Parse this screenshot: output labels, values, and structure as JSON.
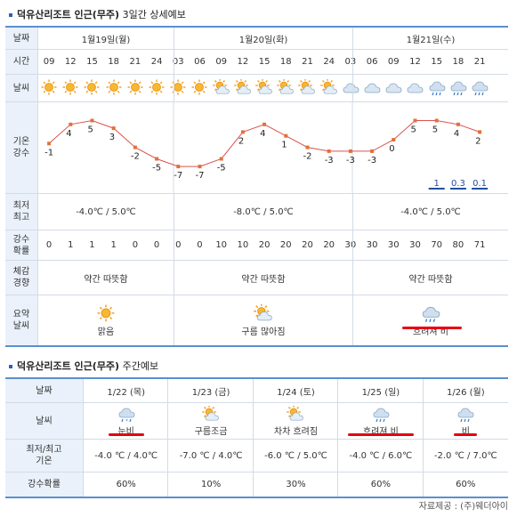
{
  "section1": {
    "title_bold": "덕유산리조트 인근(무주)",
    "title_rest": "3일간 상세예보"
  },
  "row_labels": {
    "date": "날짜",
    "time": "시간",
    "weather": "날씨",
    "temp1": "기온",
    "temp2": "강수",
    "minmax1": "최저",
    "minmax2": "최고",
    "prob1": "강수",
    "prob2": "확률",
    "feel1": "체감",
    "feel2": "경향",
    "summary1": "요약",
    "summary2": "날씨"
  },
  "days": [
    {
      "label": "1월19일(월)",
      "minmax": "-4.0℃ / 5.0℃",
      "feel": "약간 따뜻함",
      "summary": "맑음",
      "summary_icon": "sun-icon"
    },
    {
      "label": "1월20일(화)",
      "minmax": "-8.0℃ / 5.0℃",
      "feel": "약간 따뜻함",
      "summary": "구름 많아짐",
      "summary_icon": "sun-cloud-icon"
    },
    {
      "label": "1월21일(수)",
      "minmax": "-4.0℃ / 5.0℃",
      "feel": "약간 따뜻함",
      "summary": "흐려져 비",
      "summary_icon": "rain-cloud-icon"
    }
  ],
  "times": [
    "09",
    "12",
    "15",
    "18",
    "21",
    "24",
    "03",
    "06",
    "09",
    "12",
    "15",
    "18",
    "21",
    "24",
    "03",
    "06",
    "09",
    "12",
    "15",
    "18",
    "21"
  ],
  "icons": [
    "sun",
    "sun",
    "sun",
    "sun",
    "sun",
    "sun",
    "sun",
    "sun",
    "sun-cloud",
    "sun-cloud",
    "sun-cloud",
    "sun-cloud",
    "sun-cloud",
    "sun-cloud",
    "cloud",
    "cloud",
    "cloud",
    "cloud",
    "rain-cloud",
    "rain-cloud",
    "rain-cloud"
  ],
  "temps": [
    -1,
    4,
    5,
    3,
    -2,
    -5,
    -7,
    -7,
    -5,
    2,
    4,
    1,
    -2,
    -3,
    -3,
    -3,
    0,
    5,
    5,
    4,
    2
  ],
  "temp_labels": [
    "-1",
    "4",
    "5",
    "3",
    "-2",
    "-5",
    "-7",
    "-7",
    "-5",
    "2",
    "4",
    "1",
    "-2",
    "-3",
    "-3",
    "-3",
    "0",
    "5",
    "5",
    "4",
    "2"
  ],
  "precip": [
    0,
    0,
    0,
    0,
    0,
    0,
    0,
    0,
    0,
    0,
    0,
    0,
    0,
    0,
    0,
    0,
    0,
    0,
    1,
    0.3,
    0.1
  ],
  "precip_labels": [
    "",
    "",
    "",
    "",
    "",
    "",
    "",
    "",
    "",
    "",
    "",
    "",
    "",
    "",
    "",
    "",
    "",
    "",
    "1",
    "0.3",
    "0.1"
  ],
  "probs": [
    "0",
    "1",
    "1",
    "1",
    "0",
    "0",
    "0",
    "0",
    "10",
    "10",
    "20",
    "20",
    "20",
    "20",
    "30",
    "30",
    "30",
    "30",
    "70",
    "80",
    "71"
  ],
  "section2": {
    "title_bold": "덕유산리조트 인근(무주)",
    "title_rest": "주간예보"
  },
  "weekly": {
    "h_date": "날짜",
    "h_weather": "날씨",
    "h_minmax1": "최저/최고",
    "h_minmax2": "기온",
    "h_prob": "강수확률",
    "days": [
      {
        "date": "1/22 (목)",
        "weather": "눈비",
        "icon": "snow-rain-icon",
        "minmax": "-4.0 ℃ / 4.0℃",
        "prob": "60%"
      },
      {
        "date": "1/23 (금)",
        "weather": "구름조금",
        "icon": "sun-cloud-icon",
        "minmax": "-7.0 ℃ / 4.0℃",
        "prob": "10%"
      },
      {
        "date": "1/24 (토)",
        "weather": "차차 흐려짐",
        "icon": "sun-cloud-icon",
        "minmax": "-6.0 ℃ / 5.0℃",
        "prob": "30%"
      },
      {
        "date": "1/25 (일)",
        "weather": "흐려져 비",
        "icon": "rain-cloud-icon",
        "minmax": "-4.0 ℃ / 6.0℃",
        "prob": "60%"
      },
      {
        "date": "1/26 (월)",
        "weather": "비",
        "icon": "rain-cloud-icon",
        "minmax": "-2.0 ℃ / 7.0℃",
        "prob": "60%"
      }
    ]
  },
  "footer": "자료제공 : (주)웨더아이",
  "colors": {
    "accent": "#5b8fcf",
    "header_bg": "#eaf1fa",
    "line": "#d9534f",
    "highlight": "#e60012",
    "precip_bar": "#1f4fa3"
  }
}
